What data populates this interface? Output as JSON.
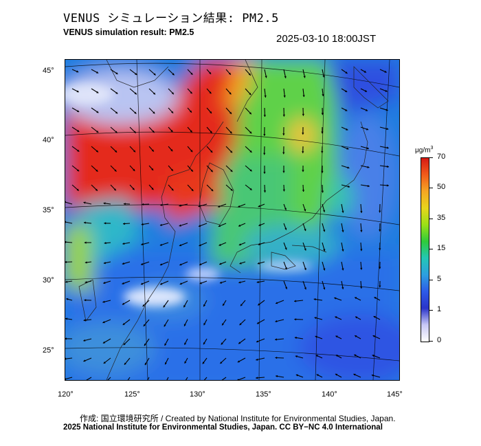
{
  "header": {
    "title_jp": "VENUS シミュレーション結果: PM2.5",
    "title_en": "VENUS simulation result: PM2.5",
    "timestamp": "2025-03-10 18:00JST"
  },
  "map": {
    "latitude_labels": [
      "45°",
      "40°",
      "35°",
      "30°",
      "25°"
    ],
    "longitude_labels": [
      "120°",
      "125°",
      "130°",
      "135°",
      "140°",
      "145°"
    ],
    "field": "PM2.5 concentration",
    "overlay": "wind vectors",
    "colors": {
      "very_high": "#e8281e",
      "high": "#f59a1c",
      "moderate": "#7ed321",
      "low": "#2fb7c9",
      "very_low": "#2256e6",
      "clean": "#f2f2ff"
    }
  },
  "colorbar": {
    "unit_base": "μg/m",
    "unit_exp": "3",
    "ticks": [
      "70",
      "50",
      "35",
      "15",
      "5",
      "1",
      "0"
    ],
    "colors": [
      "#d61b14",
      "#f25b1a",
      "#f5a623",
      "#e8d51c",
      "#9be016",
      "#2fcb3a",
      "#23c7b5",
      "#2d9fe0",
      "#2d5be8",
      "#2a34c9",
      "#c8c8f5",
      "#ffffff"
    ]
  },
  "footer": {
    "credit_line_1": "作成: 国立環境研究所 / Created by National Institute for Environmental Studies, Japan.",
    "credit_line_2": "2025 National Institute for Environmental Studies, Japan. CC BY−NC 4.0 International"
  }
}
